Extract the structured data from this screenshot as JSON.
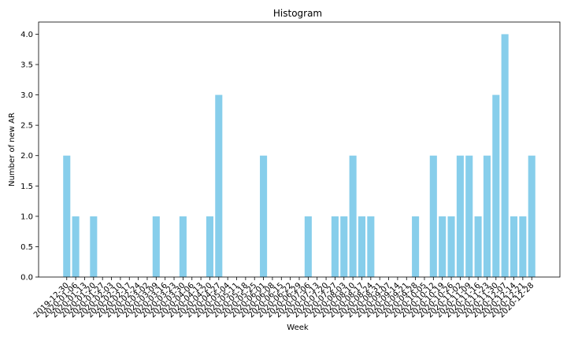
{
  "chart_data": {
    "type": "bar",
    "title": "Histogram",
    "xlabel": "Week",
    "ylabel": "Number of new AR",
    "ylim": [
      0,
      4.2
    ],
    "yticks": [
      "0.0",
      "0.5",
      "1.0",
      "1.5",
      "2.0",
      "2.5",
      "3.0",
      "3.5",
      "4.0"
    ],
    "bar_color": "#87ceeb",
    "grid": false,
    "categories": [
      "2019-12-30",
      "2020-01-06",
      "2020-01-13",
      "2020-01-20",
      "2020-01-27",
      "2020-02-03",
      "2020-02-10",
      "2020-02-17",
      "2020-02-24",
      "2020-03-02",
      "2020-03-09",
      "2020-03-16",
      "2020-03-23",
      "2020-03-30",
      "2020-04-06",
      "2020-04-13",
      "2020-04-20",
      "2020-04-27",
      "2020-05-04",
      "2020-05-11",
      "2020-05-18",
      "2020-05-25",
      "2020-06-01",
      "2020-06-08",
      "2020-06-15",
      "2020-06-22",
      "2020-06-29",
      "2020-07-06",
      "2020-07-13",
      "2020-07-20",
      "2020-07-27",
      "2020-08-03",
      "2020-08-10",
      "2020-08-17",
      "2020-08-24",
      "2020-08-31",
      "2020-09-07",
      "2020-09-14",
      "2020-09-21",
      "2020-09-28",
      "2020-10-05",
      "2020-10-12",
      "2020-10-19",
      "2020-10-26",
      "2020-11-02",
      "2020-11-09",
      "2020-11-16",
      "2020-11-23",
      "2020-11-30",
      "2020-12-07",
      "2020-12-14",
      "2020-12-21",
      "2020-12-28"
    ],
    "values": [
      2,
      1,
      0,
      1,
      0,
      0,
      0,
      0,
      0,
      0,
      1,
      0,
      0,
      1,
      0,
      0,
      1,
      3,
      0,
      0,
      0,
      0,
      2,
      0,
      0,
      0,
      0,
      1,
      0,
      0,
      1,
      1,
      2,
      1,
      1,
      0,
      0,
      0,
      0,
      1,
      0,
      2,
      1,
      1,
      2,
      2,
      1,
      2,
      3,
      4,
      1,
      1,
      2
    ]
  }
}
